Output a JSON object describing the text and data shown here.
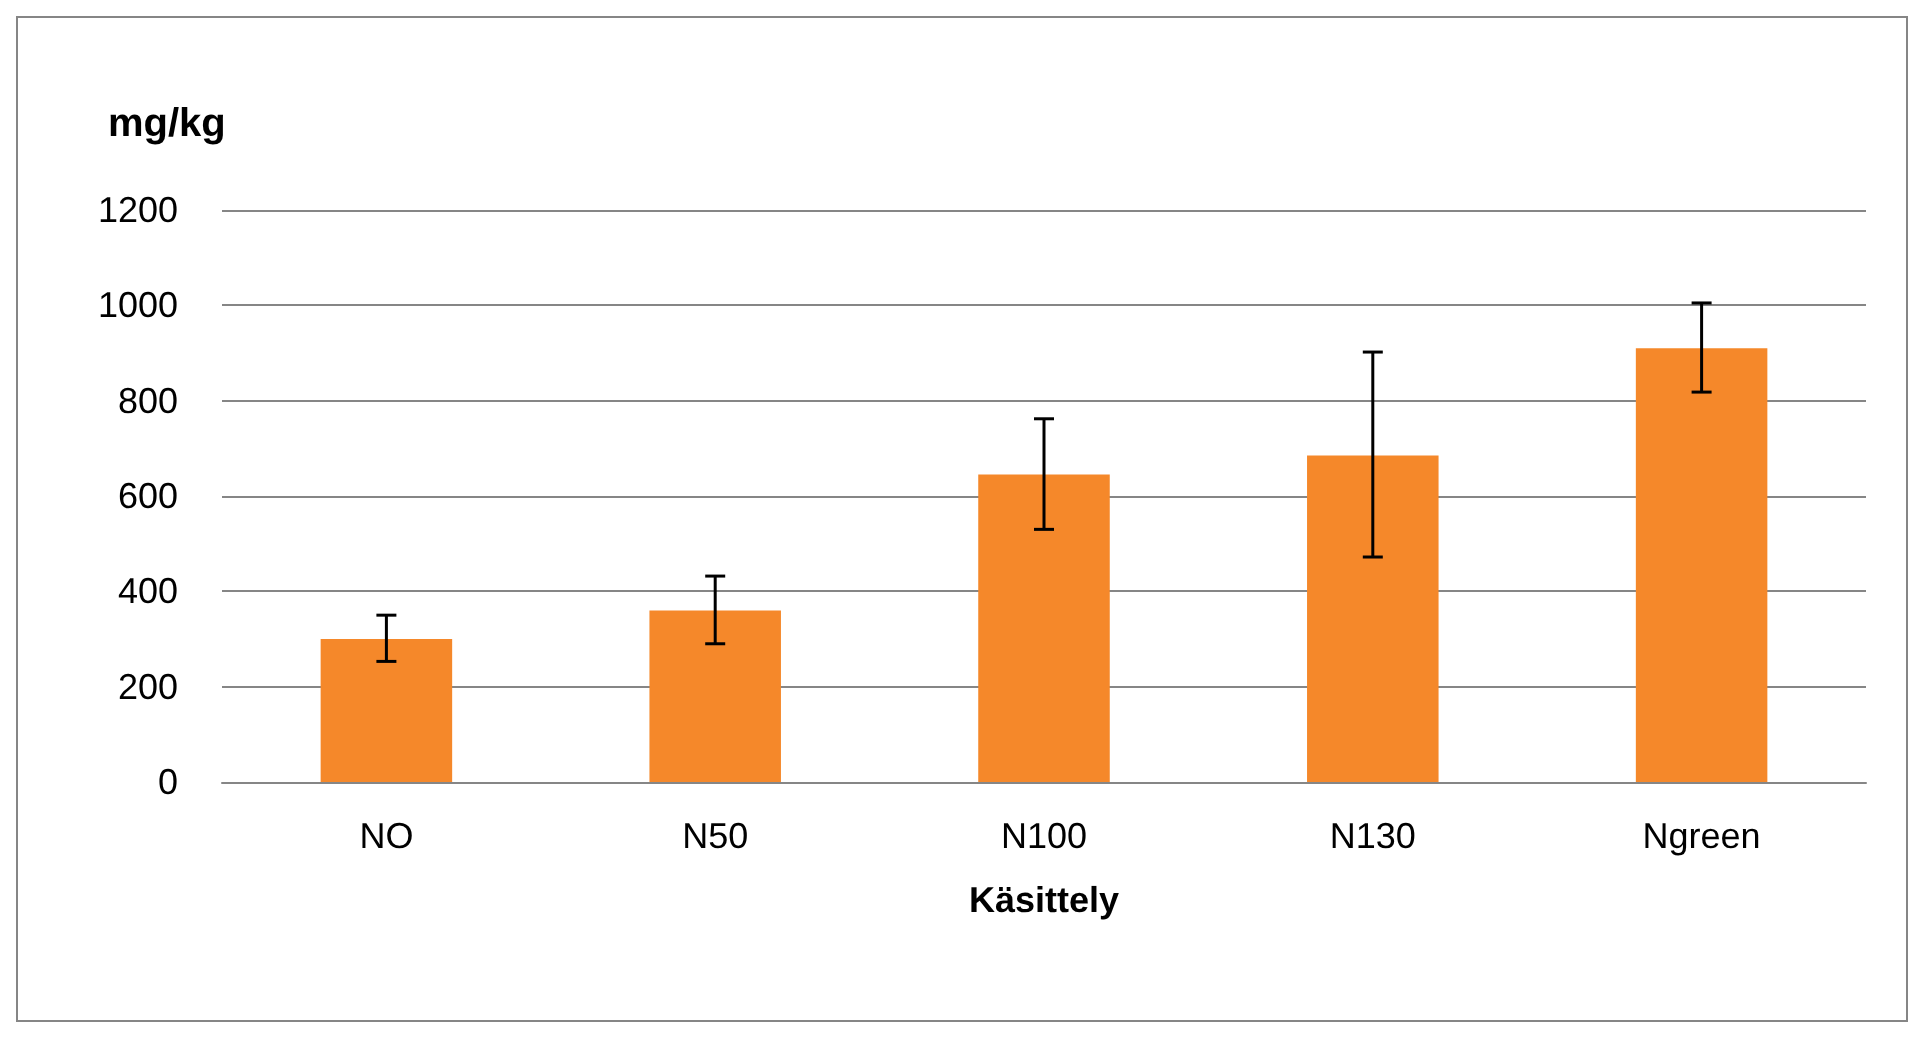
{
  "chart_data": {
    "type": "bar",
    "ylabel": "mg/kg",
    "xlabel": "Käsittely",
    "categories": [
      "NO",
      "N50",
      "N100",
      "N130",
      "Ngreen"
    ],
    "values": [
      300,
      360,
      645,
      685,
      910
    ],
    "errors": [
      [
        253,
        350
      ],
      [
        290,
        432
      ],
      [
        530,
        762
      ],
      [
        472,
        902
      ],
      [
        818,
        1005
      ]
    ],
    "color": "#f5882a",
    "ylim": [
      0,
      1200
    ],
    "yticks": [
      0,
      200,
      400,
      600,
      800,
      1000,
      1200
    ],
    "grid": "y"
  }
}
